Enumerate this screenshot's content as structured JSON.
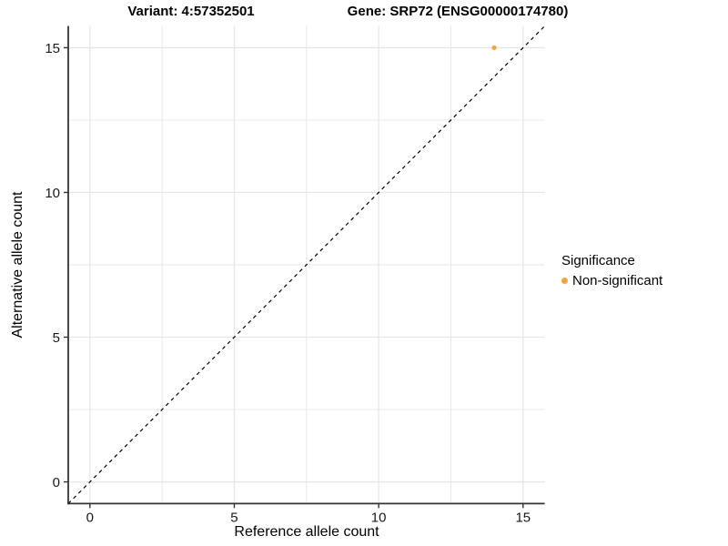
{
  "titles": {
    "variant": "Variant: 4:57352501",
    "gene": "Gene: SRP72 (ENSG00000174780)"
  },
  "legend": {
    "title": "Significance",
    "items": [
      {
        "label": "Non-significant",
        "color": "#F8A43A"
      }
    ]
  },
  "chart_data": {
    "type": "scatter",
    "title": "Variant: 4:57352501 | Gene: SRP72 (ENSG00000174780)",
    "xlabel": "Reference allele count",
    "ylabel": "Alternative allele count",
    "xlim": [
      -0.75,
      15.75
    ],
    "ylim": [
      -0.75,
      15.75
    ],
    "x_ticks": [
      0,
      5,
      10,
      15
    ],
    "y_ticks": [
      0,
      5,
      10,
      15
    ],
    "x_minor_ticks": [
      2.5,
      7.5,
      12.5
    ],
    "y_minor_ticks": [
      2.5,
      7.5,
      12.5
    ],
    "grid": true,
    "legend_position": "right",
    "colors": {
      "grid": "#E6E6E6",
      "axis": "#333333",
      "tick_label": "#1A1A1A",
      "reference_line": "#000000"
    },
    "reference_line": {
      "type": "identity",
      "style": "dashed",
      "slope": 1,
      "intercept": 0
    },
    "series": [
      {
        "name": "Non-significant",
        "color": "#F8A43A",
        "points": [
          {
            "x": 14,
            "y": 15
          }
        ]
      }
    ]
  }
}
